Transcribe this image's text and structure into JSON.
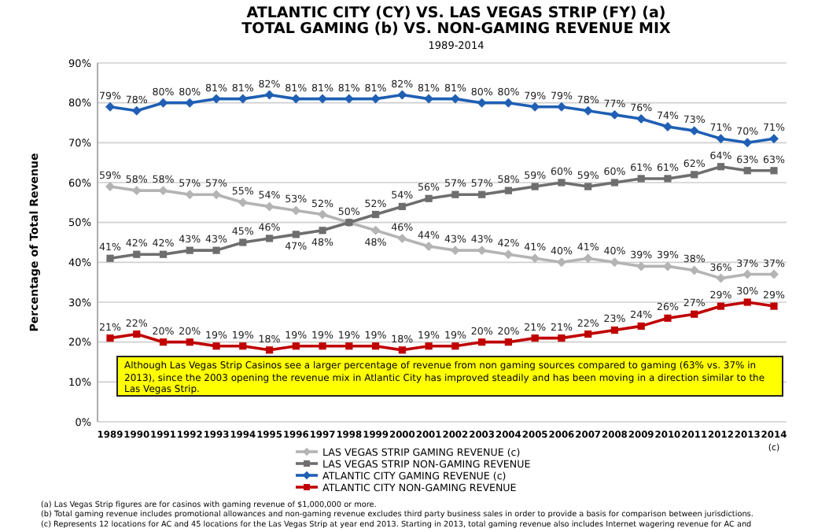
{
  "chart_data": {
    "type": "line",
    "title": "ATLANTIC CITY (CY) VS. LAS VEGAS STRIP (FY) (a)\nTOTAL GAMING (b) VS. NON-GAMING REVENUE MIX",
    "subtitle": "1989-2014",
    "ylabel": "Percentage of Total Revenue",
    "categories": [
      "1989",
      "1990",
      "1991",
      "1992",
      "1993",
      "1994",
      "1995",
      "1996",
      "1997",
      "1998",
      "1999",
      "2000",
      "2001",
      "2002",
      "2003",
      "2004",
      "2005",
      "2006",
      "2007",
      "2008",
      "2009",
      "2010",
      "2011",
      "2012",
      "2013",
      "2014$_{(c)}$"
    ],
    "series": [
      {
        "name": "LAS VEGAS STRIP GAMING REVENUE (c)",
        "color": "#b4b4b4",
        "marker": "diamond",
        "values": [
          59,
          58,
          58,
          57,
          57,
          55,
          54,
          53,
          52,
          50,
          48,
          46,
          44,
          43,
          43,
          42,
          41,
          40,
          41,
          40,
          39,
          39,
          38,
          36,
          37,
          37
        ],
        "value_labels": [
          "59%",
          "58%",
          "58%",
          "57%",
          "57%",
          "55%",
          "54%",
          "53%",
          "52%",
          null,
          "48%",
          "46%",
          "44%",
          "43%",
          "43%",
          "42%",
          "41%",
          "40%",
          "41%",
          "40%",
          "39%",
          "39%",
          "38%",
          "36%",
          "37%",
          "37%"
        ]
      },
      {
        "name": "LAS VEGAS STRIP NON-GAMING REVENUE",
        "color": "#6e6e6e",
        "marker": "square",
        "values": [
          41,
          42,
          42,
          43,
          43,
          45,
          46,
          47,
          48,
          50,
          52,
          54,
          56,
          57,
          57,
          58,
          59,
          60,
          59,
          60,
          61,
          61,
          62,
          64,
          63,
          63
        ],
        "value_labels": [
          "41%",
          "42%",
          "42%",
          "43%",
          "43%",
          "45%",
          "46%",
          "47%",
          "48%",
          "50%",
          "52%",
          "54%",
          "56%",
          "57%",
          "57%",
          "58%",
          "59%",
          "60%",
          "59%",
          "60%",
          "61%",
          "61%",
          "62%",
          "64%",
          "63%",
          "63%"
        ]
      },
      {
        "name": "ATLANTIC CITY GAMING REVENUE (c)",
        "color": "#1f5fb4",
        "marker": "diamond",
        "values": [
          79,
          78,
          80,
          80,
          81,
          81,
          82,
          81,
          81,
          81,
          81,
          82,
          81,
          81,
          80,
          80,
          79,
          79,
          78,
          77,
          76,
          74,
          73,
          71,
          70,
          71
        ],
        "value_labels": [
          "79%",
          "78%",
          "80%",
          "80%",
          "81%",
          "81%",
          "82%",
          "81%",
          "81%",
          "81%",
          "81%",
          "82%",
          "81%",
          "81%",
          "80%",
          "80%",
          "79%",
          "79%",
          "78%",
          "77%",
          "76%",
          "74%",
          "73%",
          "71%",
          "70%",
          "71%"
        ]
      },
      {
        "name": "ATLANTIC CITY NON-GAMING REVENUE",
        "color": "#c00000",
        "marker": "square",
        "values": [
          21,
          22,
          20,
          20,
          19,
          19,
          18,
          19,
          19,
          19,
          19,
          18,
          19,
          19,
          20,
          20,
          21,
          21,
          22,
          23,
          24,
          26,
          27,
          29,
          30,
          29
        ],
        "value_labels": [
          "21%",
          "22%",
          "20%",
          "20%",
          "19%",
          "19%",
          "18%",
          "19%",
          "19%",
          "19%",
          "19%",
          "18%",
          "19%",
          "19%",
          "20%",
          "20%",
          "21%",
          "21%",
          "22%",
          "23%",
          "24%",
          "26%",
          "27%",
          "29%",
          "30%",
          "29%"
        ]
      }
    ],
    "ylim": [
      0,
      90
    ],
    "yticks": [
      {
        "value": 0,
        "label": "0%"
      },
      {
        "value": 10,
        "label": "10%"
      },
      {
        "value": 20,
        "label": "20%"
      },
      {
        "value": 30,
        "label": "30%"
      },
      {
        "value": 40,
        "label": "40%"
      },
      {
        "value": 50,
        "label": "50%"
      },
      {
        "value": 60,
        "label": "60%"
      },
      {
        "value": 70,
        "label": "70%"
      },
      {
        "value": 80,
        "label": "80%"
      },
      {
        "value": 90,
        "label": "90%"
      }
    ],
    "grid": "y",
    "legend": "bottom",
    "annotations": [
      "Although Las Vegas Strip Casinos see a larger percentage of revenue from non gaming sources compared to gaming (63% vs. 37% in 2013), since the 2003 opening the revenue mix in Atlantic City has improved steadily and has been moving in a direction similar to the Las Vegas Strip.",
      "(a) Las Vegas Strip figures are for casinos with gaming revenue of $1,000,000 or more.",
      "(b) Total gaming revenue includes promotional allowances and non-gaming revenue excludes third party business sales in order to provide a basis for comparison between jurisdictions.",
      "(c) Represents 12 locations for AC and 45 locations for the Las Vegas Strip at year end 2013. Starting in 2013, total gaming revenue also includes Internet wagering revenue for AC and"
    ]
  }
}
